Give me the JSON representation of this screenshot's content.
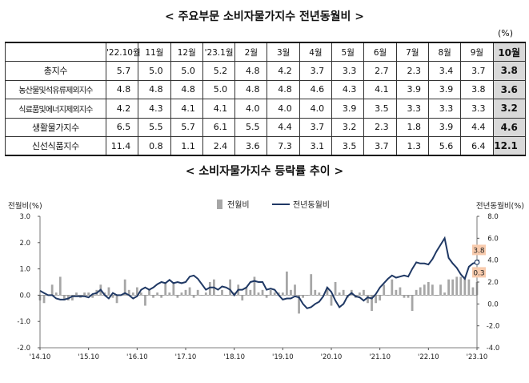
{
  "table": {
    "title": "< 주요부문 소비자물가지수 전년동월비 >",
    "unit": "(%)",
    "headers": [
      "",
      "'22.10월",
      "11월",
      "12월",
      "'23.1월",
      "2월",
      "3월",
      "4월",
      "5월",
      "6월",
      "7월",
      "8월",
      "9월",
      "10월"
    ],
    "rows": [
      {
        "label": "총지수",
        "values": [
          "5.7",
          "5.0",
          "5.0",
          "5.2",
          "4.8",
          "4.2",
          "3.7",
          "3.3",
          "2.7",
          "2.3",
          "3.4",
          "3.7",
          "3.8"
        ]
      },
      {
        "label": "농산물및석유류제외지수",
        "values": [
          "4.8",
          "4.8",
          "4.8",
          "5.0",
          "4.8",
          "4.8",
          "4.6",
          "4.3",
          "4.1",
          "3.9",
          "3.9",
          "3.8",
          "3.6"
        ]
      },
      {
        "label": "식료품및에너지제외지수",
        "values": [
          "4.2",
          "4.3",
          "4.1",
          "4.1",
          "4.0",
          "4.0",
          "4.0",
          "3.9",
          "3.5",
          "3.3",
          "3.3",
          "3.3",
          "3.2"
        ]
      },
      {
        "label": "생활물가지수",
        "values": [
          "6.5",
          "5.5",
          "5.7",
          "6.1",
          "5.5",
          "4.4",
          "3.7",
          "3.2",
          "2.3",
          "1.8",
          "3.9",
          "4.4",
          "4.6"
        ]
      },
      {
        "label": "신선식품지수",
        "values": [
          "11.4",
          "0.8",
          "1.1",
          "2.4",
          "3.6",
          "7.3",
          "3.1",
          "3.5",
          "3.7",
          "1.3",
          "5.6",
          "6.4",
          "12.1"
        ]
      }
    ]
  },
  "chart_title": "< 소비자물가지수 등락률 추이 >",
  "chart_data": {
    "type": "bar+line",
    "left_axis_label": "전월비(%)",
    "right_axis_label": "전년동월비(%)",
    "left_ylim": [
      -2.0,
      3.0
    ],
    "left_ticks": [
      "3.0",
      "2.0",
      "1.0",
      "0.0",
      "-1.0",
      "-2.0"
    ],
    "right_ylim": [
      -4.0,
      8.0
    ],
    "right_ticks": [
      "8.0",
      "6.0",
      "4.0",
      "2.0",
      "0.0",
      "-2.0",
      "-4.0"
    ],
    "x_ticks": [
      "'14.10",
      "'15.10",
      "'16.10",
      "'17.10",
      "'18.10",
      "'19.10",
      "'20.10",
      "'21.10",
      "'22.10",
      "'23.10"
    ],
    "legend": [
      "전월비",
      "전년동월비"
    ],
    "annotations": {
      "last_yoy": "3.8",
      "last_mom": "0.3"
    },
    "monthly_mom": [
      -0.2,
      -0.3,
      0.0,
      0.4,
      0.1,
      0.7,
      -0.2,
      -0.2,
      -0.2,
      0.1,
      -0.1,
      0.1,
      0.1,
      -0.1,
      0.2,
      0.4,
      0.1,
      0.3,
      -0.1,
      -0.3,
      0.0,
      0.6,
      0.2,
      0.1,
      0.3,
      0.1,
      -0.4,
      0.2,
      -0.1,
      0.1,
      -0.1,
      0.5,
      0.1,
      0.5,
      -0.1,
      0.1,
      0.2,
      0.3,
      -0.1,
      0.2,
      0.0,
      0.1,
      0.5,
      0.6,
      0.0,
      0.2,
      0.0,
      0.6,
      0.1,
      0.4,
      -0.2,
      0.3,
      0.2,
      0.7,
      0.1,
      0.2,
      -0.1,
      0.2,
      0.1,
      0.1,
      0.1,
      0.9,
      0.2,
      0.4,
      -0.7,
      -0.1,
      0.0,
      0.8,
      0.2,
      0.1,
      0.0,
      0.3,
      -0.4,
      0.5,
      0.1,
      0.2,
      -0.1,
      0.2,
      -0.1,
      0.1,
      0.2,
      -0.3,
      -0.6,
      -0.3,
      -0.2,
      0.4,
      0.0,
      0.6,
      0.2,
      0.3,
      -0.1,
      -0.1,
      -0.6,
      0.2,
      0.3,
      0.4,
      0.5,
      0.4,
      0.0,
      0.4,
      0.1,
      0.6,
      0.6,
      0.7,
      0.7,
      0.7,
      0.6,
      0.3,
      0.5,
      0.4,
      0.2,
      0.4,
      -0.1,
      0.2,
      0.3,
      0.5,
      0.8,
      0.6,
      0.0,
      0.1,
      -0.1,
      0.0,
      0.2,
      0.3,
      -0.1,
      0.1,
      0.6,
      0.3
    ]
  }
}
